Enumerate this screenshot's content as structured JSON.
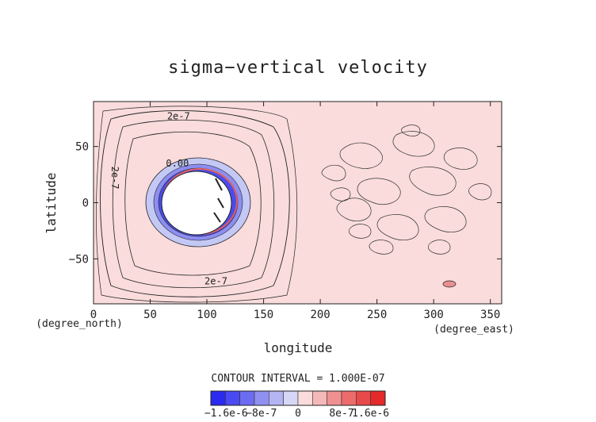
{
  "chart_data": {
    "type": "contour",
    "title": "sigma−vertical velocity",
    "xlabel": "longitude",
    "ylabel": "latitude",
    "xunit_label": "(degree_east)",
    "yunit_label": "(degree_north)",
    "xlim": [
      0,
      360
    ],
    "ylim": [
      -90,
      90
    ],
    "xticks": [
      0,
      50,
      100,
      150,
      200,
      250,
      300,
      350
    ],
    "yticks": [
      -50,
      0,
      50
    ],
    "contour_interval_text": "CONTOUR INTERVAL = 1.000E-07",
    "background_level_color": "#fadcdc",
    "contour_labels": [
      {
        "text": "2e-7",
        "lon": 75,
        "lat": 77
      },
      {
        "text": "2e-7",
        "lon": 108,
        "lat": -70
      },
      {
        "text": "0.00",
        "lon": 74,
        "lat": 35
      },
      {
        "text": "2e-7",
        "lon": 16,
        "lat": 25
      }
    ],
    "circle_feature": {
      "center_lon": 97,
      "center_lat": 2,
      "radius_lon": 44,
      "radius_lat": 39
    },
    "colorbar": {
      "levels": [
        "#2a2af0",
        "#4a4af2",
        "#6c6cf2",
        "#9090f0",
        "#b4b4f2",
        "#d6d6f6",
        "#fadcdc",
        "#f4b8b8",
        "#f09090",
        "#ec6c6c",
        "#e84a4a",
        "#e42a2a"
      ],
      "tick_labels": [
        "−1.6e-6",
        "−8e-7",
        "0",
        "8e-7",
        "1.6e-6"
      ]
    }
  }
}
